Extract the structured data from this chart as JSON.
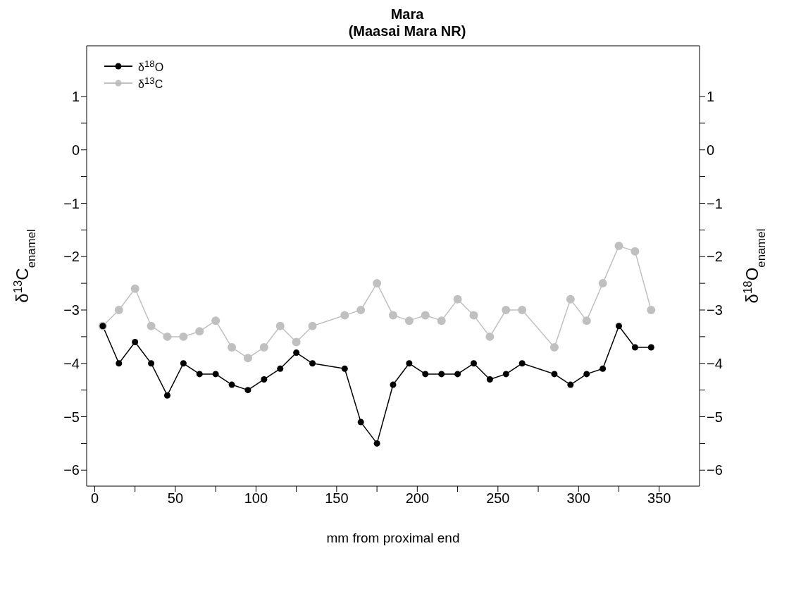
{
  "chart_data": {
    "type": "line",
    "title": "Mara\n(Maasai Mara NR)",
    "xlabel": "mm from proximal end",
    "ylabel": "δ$^{13}$C$_{enamel}$",
    "y2label": "δ$^{18}$O$_{enamel}$",
    "series": [
      {
        "name": "δ$^{18}$O",
        "color": "#000000",
        "x": [
          5,
          15,
          25,
          35,
          45,
          55,
          65,
          75,
          85,
          95,
          105,
          115,
          125,
          135,
          155,
          165,
          175,
          185,
          195,
          205,
          215,
          225,
          235,
          245,
          255,
          265,
          285,
          295,
          305,
          315,
          325,
          335,
          345
        ],
        "values": [
          -3.3,
          -4.0,
          -3.6,
          -4.0,
          -4.6,
          -4.0,
          -4.2,
          -4.2,
          -4.4,
          -4.5,
          -4.3,
          -4.1,
          -3.8,
          -4.0,
          -4.1,
          -5.1,
          -5.5,
          -4.4,
          -4.0,
          -4.2,
          -4.2,
          -4.2,
          -4.0,
          -4.3,
          -4.2,
          -4.0,
          -4.2,
          -4.4,
          -4.2,
          -4.1,
          -3.3,
          -3.7,
          -3.7
        ]
      },
      {
        "name": "δ$^{13}$C",
        "color": "#c0c0c0",
        "x": [
          5,
          15,
          25,
          35,
          45,
          55,
          65,
          75,
          85,
          95,
          105,
          115,
          125,
          135,
          155,
          165,
          175,
          185,
          195,
          205,
          215,
          225,
          235,
          245,
          255,
          265,
          285,
          295,
          305,
          315,
          325,
          335,
          345
        ],
        "values": [
          -3.3,
          -3.0,
          -2.6,
          -3.3,
          -3.5,
          -3.5,
          -3.4,
          -3.2,
          -3.7,
          -3.9,
          -3.7,
          -3.3,
          -3.6,
          -3.3,
          -3.1,
          -3.0,
          -2.5,
          -3.1,
          -3.2,
          -3.1,
          -3.2,
          -2.8,
          -3.1,
          -3.5,
          -3.0,
          -3.0,
          -3.7,
          -2.8,
          -3.2,
          -2.5,
          -1.8,
          -1.9,
          -3.0
        ]
      }
    ],
    "xlim": [
      -5,
      375
    ],
    "xticks": [
      0,
      {
        "value": 25,
        "label": null
      },
      50,
      {
        "value": 75,
        "label": null
      },
      100,
      {
        "value": 125,
        "label": null
      },
      150,
      {
        "value": 175,
        "label": null
      },
      200,
      {
        "value": 225,
        "label": null
      },
      250,
      {
        "value": 275,
        "label": null
      },
      300,
      {
        "value": 325,
        "label": null
      },
      350
    ],
    "ylim": [
      -6.3,
      1.95
    ],
    "yticks": [
      {
        "value": -6,
        "label": "−6"
      },
      {
        "value": -5.5,
        "label": null
      },
      {
        "value": -5,
        "label": "−5"
      },
      {
        "value": -4.5,
        "label": null
      },
      {
        "value": -4,
        "label": "−4"
      },
      {
        "value": -3.5,
        "label": null
      },
      {
        "value": -3,
        "label": "−3"
      },
      {
        "value": -2.5,
        "label": null
      },
      {
        "value": -2,
        "label": "−2"
      },
      {
        "value": -1.5,
        "label": null
      },
      {
        "value": -1,
        "label": "−1"
      },
      {
        "value": -0.5,
        "label": null
      },
      0,
      {
        "value": 0.5,
        "label": null
      },
      1
    ],
    "y2lim": [
      -6.3,
      1.95
    ],
    "y2ticks": [
      {
        "value": -6,
        "label": "−6"
      },
      {
        "value": -5.5,
        "label": null
      },
      {
        "value": -5,
        "label": "−5"
      },
      {
        "value": -4.5,
        "label": null
      },
      {
        "value": -4,
        "label": "−4"
      },
      {
        "value": -3.5,
        "label": null
      },
      {
        "value": -3,
        "label": "−3"
      },
      {
        "value": -2.5,
        "label": null
      },
      {
        "value": -2,
        "label": "−2"
      },
      {
        "value": -1.5,
        "label": null
      },
      {
        "value": -1,
        "label": "−1"
      },
      {
        "value": -0.5,
        "label": null
      },
      0,
      {
        "value": 0.5,
        "label": null
      },
      1
    ],
    "grid": false,
    "legend": "top left",
    "marker": "circle",
    "line_style": "solid"
  }
}
